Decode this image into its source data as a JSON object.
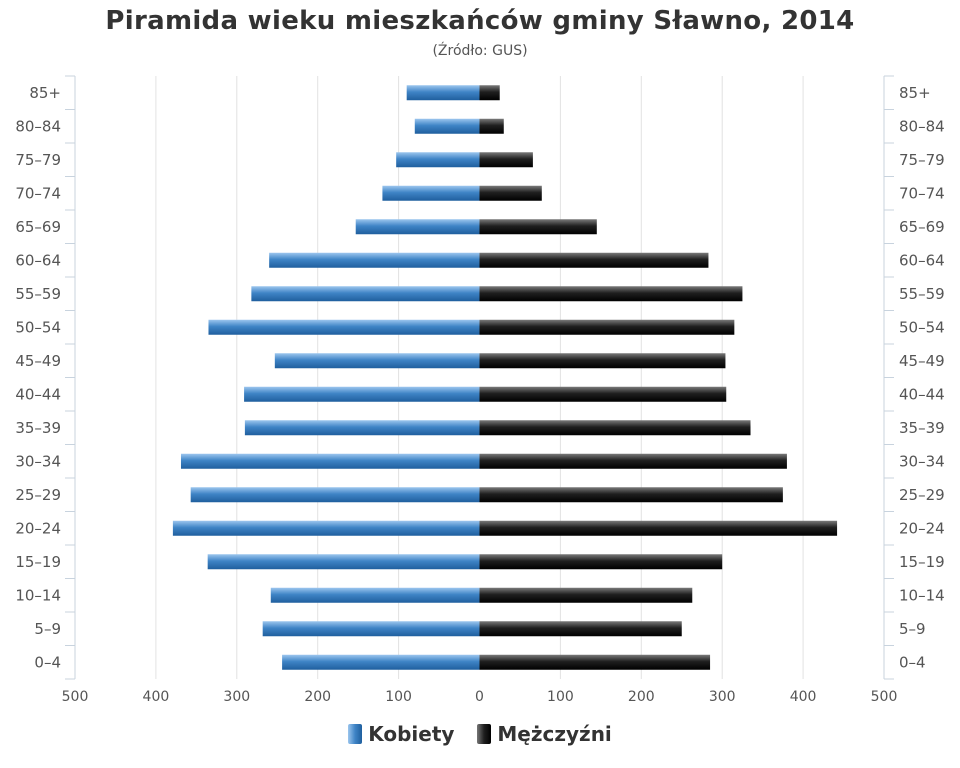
{
  "chart_data": {
    "type": "bar",
    "orientation": "horizontal-pyramid",
    "title": "Piramida wieku mieszkańców gminy Sławno, 2014",
    "subtitle": "(Źródło: GUS)",
    "categories": [
      "0–4",
      "5–9",
      "10–14",
      "15–19",
      "20–24",
      "25–29",
      "30–34",
      "35–39",
      "40–44",
      "45–49",
      "50–54",
      "55–59",
      "60–64",
      "65–69",
      "70–74",
      "75–79",
      "80–84",
      "85+"
    ],
    "series": [
      {
        "name": "Kobiety",
        "color": "#3a7fc1",
        "side": "left",
        "values": [
          244,
          268,
          258,
          336,
          379,
          357,
          369,
          290,
          291,
          253,
          335,
          282,
          260,
          153,
          120,
          103,
          80,
          90
        ]
      },
      {
        "name": "Mężczyźni",
        "color": "#1a1a1a",
        "side": "right",
        "values": [
          285,
          250,
          263,
          300,
          442,
          375,
          380,
          335,
          305,
          304,
          315,
          325,
          283,
          145,
          77,
          66,
          30,
          25
        ]
      }
    ],
    "xlim": [
      -500,
      500
    ],
    "xticks": [
      -500,
      -400,
      -300,
      -200,
      -100,
      0,
      100,
      200,
      300,
      400,
      500
    ],
    "xtick_labels": [
      "500",
      "400",
      "300",
      "200",
      "100",
      "0",
      "100",
      "200",
      "300",
      "400",
      "500"
    ],
    "grid": true,
    "legend": "bottom-center"
  }
}
